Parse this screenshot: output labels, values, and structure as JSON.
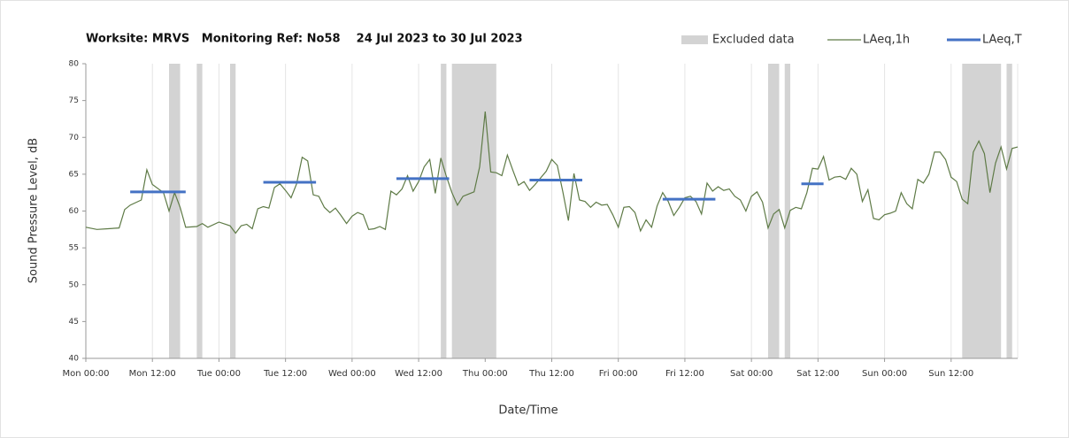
{
  "chart_data": {
    "type": "line",
    "title": "Worksite: MRVS   Monitoring Ref: No58    24 Jul 2023 to 30 Jul 2023",
    "x_label": "Date/Time",
    "y_label": "Sound Pressure Level, dB",
    "xlim": [
      0,
      168
    ],
    "xticks": [
      {
        "value": 0,
        "label": "Mon 00:00"
      },
      {
        "value": 12,
        "label": "Mon 12:00"
      },
      {
        "value": 24,
        "label": "Tue 00:00"
      },
      {
        "value": 36,
        "label": "Tue 12:00"
      },
      {
        "value": 48,
        "label": "Wed 00:00"
      },
      {
        "value": 60,
        "label": "Wed 12:00"
      },
      {
        "value": 72,
        "label": "Thu 00:00"
      },
      {
        "value": 84,
        "label": "Thu 12:00"
      },
      {
        "value": 96,
        "label": "Fri 00:00"
      },
      {
        "value": 108,
        "label": "Fri 12:00"
      },
      {
        "value": 120,
        "label": "Sat 00:00"
      },
      {
        "value": 132,
        "label": "Sat 12:00"
      },
      {
        "value": 144,
        "label": "Sun 00:00"
      },
      {
        "value": 156,
        "label": "Sun 12:00"
      }
    ],
    "ylim": [
      40,
      80
    ],
    "yticks": [
      40,
      45,
      50,
      55,
      60,
      65,
      70,
      75,
      80
    ],
    "grid": "x",
    "legend": "top-right",
    "excluded": {
      "name": "Excluded data",
      "color": "#d3d3d3",
      "ranges": [
        [
          15,
          17
        ],
        [
          20,
          21
        ],
        [
          26,
          27
        ],
        [
          64,
          65
        ],
        [
          66,
          74
        ],
        [
          123,
          125
        ],
        [
          126,
          127
        ],
        [
          158,
          165
        ],
        [
          166,
          167
        ]
      ]
    },
    "series": [
      {
        "name": "LAeq,1h",
        "color": "#5e7a46",
        "x": [
          0,
          2,
          4,
          6,
          7,
          8,
          10,
          11,
          12,
          14,
          15,
          16,
          17,
          18,
          20,
          21,
          22,
          24,
          26,
          27,
          28,
          29,
          30,
          31,
          32,
          33,
          34,
          35,
          36,
          37,
          38,
          39,
          40,
          41,
          42,
          43,
          44,
          45,
          46,
          47,
          48,
          49,
          50,
          51,
          52,
          53,
          54,
          55,
          56,
          57,
          58,
          59,
          60,
          61,
          62,
          63,
          64,
          65,
          66,
          67,
          68,
          69,
          70,
          71,
          72,
          73,
          74,
          75,
          76,
          77,
          78,
          79,
          80,
          81,
          82,
          83,
          84,
          85,
          86,
          87,
          88,
          89,
          90,
          91,
          92,
          93,
          94,
          95,
          96,
          97,
          98,
          99,
          100,
          101,
          102,
          103,
          104,
          105,
          106,
          107,
          108,
          109,
          110,
          111,
          112,
          113,
          114,
          115,
          116,
          117,
          118,
          119,
          120,
          121,
          122,
          123,
          124,
          125,
          126,
          127,
          128,
          129,
          130,
          131,
          132,
          133,
          134,
          135,
          136,
          137,
          138,
          139,
          140,
          141,
          142,
          143,
          144,
          145,
          146,
          147,
          148,
          149,
          150,
          151,
          152,
          153,
          154,
          155,
          156,
          157,
          158,
          159,
          160,
          161,
          162,
          163,
          164,
          165,
          166,
          167,
          168
        ],
        "values": [
          57.8,
          57.5,
          57.6,
          57.7,
          60.2,
          60.8,
          61.5,
          65.6,
          63.6,
          62.5,
          60.0,
          62.5,
          60.5,
          57.8,
          57.9,
          58.3,
          57.8,
          58.5,
          58.0,
          57.0,
          58.0,
          58.2,
          57.6,
          60.3,
          60.6,
          60.4,
          63.2,
          63.7,
          62.8,
          61.8,
          63.7,
          67.3,
          66.8,
          62.2,
          62.0,
          60.5,
          59.8,
          60.4,
          59.4,
          58.3,
          59.3,
          59.8,
          59.5,
          57.5,
          57.6,
          57.9,
          57.5,
          62.7,
          62.2,
          63.0,
          64.8,
          62.7,
          64.0,
          66.0,
          67.0,
          62.4,
          67.2,
          64.7,
          62.5,
          60.8,
          62.0,
          62.3,
          62.6,
          66.0,
          73.5,
          65.3,
          65.2,
          64.8,
          67.6,
          65.5,
          63.5,
          64.0,
          62.8,
          63.6,
          64.5,
          65.4,
          67.0,
          66.2,
          62.6,
          58.7,
          65.1,
          61.5,
          61.3,
          60.5,
          61.2,
          60.8,
          60.9,
          59.5,
          57.8,
          60.5,
          60.6,
          59.8,
          57.3,
          58.8,
          57.8,
          60.7,
          62.5,
          61.3,
          59.4,
          60.5,
          61.8,
          62.0,
          61.3,
          59.6,
          63.8,
          62.7,
          63.3,
          62.8,
          63.0,
          62.0,
          61.5,
          60.0,
          62.0,
          62.6,
          61.2,
          57.7,
          59.6,
          60.2,
          57.7,
          60.1,
          60.5,
          60.3,
          62.5,
          65.8,
          65.7,
          67.4,
          64.2,
          64.6,
          64.7,
          64.3,
          65.8,
          65.0,
          61.3,
          62.9,
          59.0,
          58.8,
          59.5,
          59.7,
          60.0,
          62.5,
          61.0,
          60.3,
          64.3,
          63.8,
          65.0,
          68.0,
          68.0,
          67.0,
          64.6,
          64.0,
          61.6,
          61.0,
          68.0,
          69.5,
          67.8,
          62.5,
          66.5,
          68.7,
          65.7,
          68.5,
          68.7
        ]
      },
      {
        "name": "LAeq,T",
        "color": "#4472c4",
        "segments": [
          {
            "start": 8,
            "end": 18,
            "value": 62.6
          },
          {
            "start": 32,
            "end": 41.5,
            "value": 63.9
          },
          {
            "start": 56,
            "end": 65.5,
            "value": 64.4
          },
          {
            "start": 80,
            "end": 89.5,
            "value": 64.2
          },
          {
            "start": 104,
            "end": 113.5,
            "value": 61.6
          },
          {
            "start": 129,
            "end": 133,
            "value": 63.7
          }
        ]
      }
    ]
  }
}
